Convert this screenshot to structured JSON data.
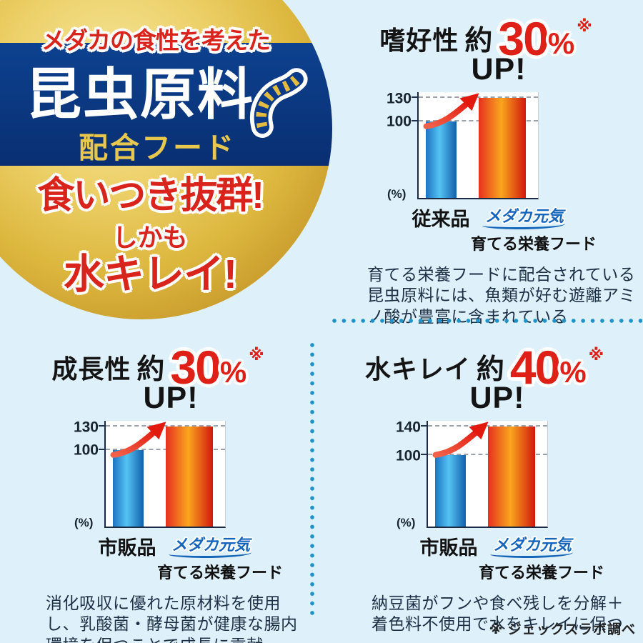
{
  "page": {
    "background": "#def0f9",
    "footnote": "※ ジェックスラボ調べ"
  },
  "badge": {
    "tagline": "メダカの食性を考えた",
    "title": "昆虫原料",
    "subtitle": "配合フード",
    "icon": "insect-worm-icon",
    "colors": {
      "gold": "#ddb83f",
      "navy": "#0b3a8a",
      "red": "#d9241c",
      "title_white": "#ffffff",
      "subtitle_gold": "#e7c74e"
    }
  },
  "catchcopy": {
    "line1": "食いつき抜群!",
    "line2": "しかも",
    "line3": "水キレイ!"
  },
  "panels": [
    {
      "metric": "嗜好性",
      "approx": "約",
      "value": "30",
      "unit": "%",
      "note_mark": "※",
      "up": "UP!",
      "chart": {
        "ymax_label": "130",
        "base_label": "100",
        "unit": "(%)",
        "bar1_label": "従来品",
        "bar2_brand": "メダカ元気",
        "bar2_label": "育てる栄養フード",
        "bar1_value": 100,
        "bar2_value": 130
      },
      "description": "育てる栄養フードに配合されている昆虫原料には、魚類が好む遊離アミノ酸が豊富に含まれている"
    },
    {
      "metric": "成長性",
      "approx": "約",
      "value": "30",
      "unit": "%",
      "note_mark": "※",
      "up": "UP!",
      "chart": {
        "ymax_label": "130",
        "base_label": "100",
        "unit": "(%)",
        "bar1_label": "市販品",
        "bar2_brand": "メダカ元気",
        "bar2_label": "育てる栄養フード",
        "bar1_value": 100,
        "bar2_value": 130
      },
      "description": "消化吸収に優れた原材料を使用し、乳酸菌・酵母菌が健康な腸内環境を保つことで成長に貢献"
    },
    {
      "metric": "水キレイ",
      "approx": "約",
      "value": "40",
      "unit": "%",
      "note_mark": "※",
      "up": "UP!",
      "chart": {
        "ymax_label": "140",
        "base_label": "100",
        "unit": "(%)",
        "bar1_label": "市販品",
        "bar2_brand": "メダカ元気",
        "bar2_label": "育てる栄養フード",
        "bar1_value": 100,
        "bar2_value": 140
      },
      "description": "納豆菌がフンや食べ残しを分解＋着色料不使用で水をキレイに保つ"
    }
  ],
  "chart_data": [
    {
      "type": "bar",
      "title": "嗜好性 約30% UP!",
      "categories": [
        "従来品",
        "メダカ元気 育てる栄養フード"
      ],
      "values": [
        100,
        130
      ],
      "ylabel": "(%)",
      "yticks": [
        100,
        130
      ],
      "ylim": [
        0,
        138
      ],
      "grid": "dashed horizontal lines at 100 and 130",
      "legend": "none",
      "bar_colors": [
        "blue gradient #1d73c4→#55c3f2→#1160ae",
        "red-orange gradient #e6301f→#f9a61d→#d2170e"
      ],
      "annotations": [
        "red curved upward arrow from bar 1 top to bar 2 top"
      ]
    },
    {
      "type": "bar",
      "title": "成長性 約30% UP!",
      "categories": [
        "市販品",
        "メダカ元気 育てる栄養フード"
      ],
      "values": [
        100,
        130
      ],
      "ylabel": "(%)",
      "yticks": [
        100,
        130
      ],
      "ylim": [
        0,
        138
      ],
      "grid": "dashed horizontal lines at 100 and 130",
      "legend": "none",
      "bar_colors": [
        "blue gradient",
        "red-orange gradient"
      ],
      "annotations": [
        "red curved upward arrow from bar 1 top to bar 2 top"
      ]
    },
    {
      "type": "bar",
      "title": "水キレイ 約40% UP!",
      "categories": [
        "市販品",
        "メダカ元気 育てる栄養フード"
      ],
      "values": [
        100,
        140
      ],
      "ylabel": "(%)",
      "yticks": [
        100,
        140
      ],
      "ylim": [
        0,
        148
      ],
      "grid": "dashed horizontal lines at 100 and 140",
      "legend": "none",
      "bar_colors": [
        "blue gradient",
        "red-orange gradient"
      ],
      "annotations": [
        "red curved upward arrow from bar 1 top to bar 2 top"
      ]
    }
  ]
}
